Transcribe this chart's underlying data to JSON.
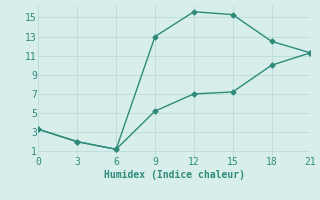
{
  "xlabel": "Humidex (Indice chaleur)",
  "line1_x": [
    0,
    3,
    6,
    9,
    12,
    15,
    18,
    21
  ],
  "line1_y": [
    3.3,
    2.0,
    1.2,
    13.0,
    15.6,
    15.3,
    12.5,
    11.3
  ],
  "line2_x": [
    0,
    3,
    6,
    9,
    12,
    15,
    18,
    21
  ],
  "line2_y": [
    3.3,
    2.0,
    1.2,
    5.2,
    7.0,
    7.2,
    10.0,
    11.3
  ],
  "line_color": "#2e8b7a",
  "bg_color": "#d8eeeb",
  "grid_color": "#b8dbd8",
  "xticks": [
    0,
    3,
    6,
    9,
    12,
    15,
    18,
    21
  ],
  "yticks": [
    1,
    3,
    5,
    7,
    9,
    11,
    13,
    15
  ],
  "xlim": [
    0,
    21
  ],
  "ylim": [
    0.5,
    16.2
  ],
  "marker": "D",
  "marker_size": 2.5,
  "line_width": 1.0,
  "tick_fontsize": 7,
  "xlabel_fontsize": 7
}
